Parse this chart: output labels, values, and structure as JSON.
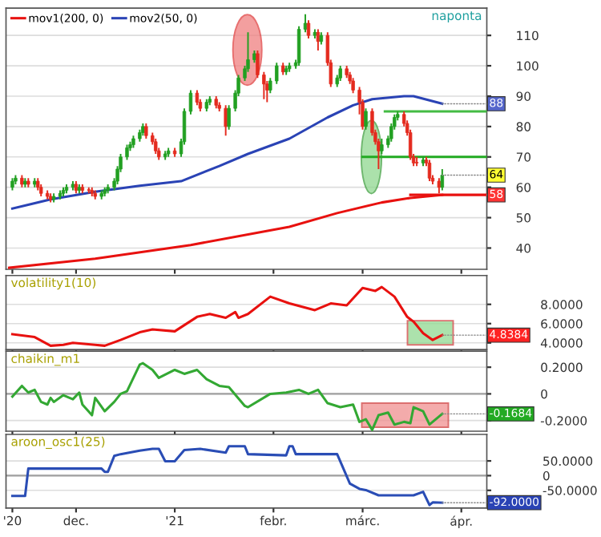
{
  "chart_data": [
    {
      "type": "candlestick",
      "x": [
        "2020-11-11",
        "2020-11-12",
        "2020-11-14",
        "2020-11-15",
        "2020-11-16",
        "2020-11-18",
        "2020-11-19",
        "2020-11-20",
        "2020-11-22",
        "2020-11-23",
        "2020-11-24",
        "2020-11-26",
        "2020-11-27",
        "2020-11-28",
        "2020-11-30",
        "2020-12-01",
        "2020-12-02",
        "2020-12-03",
        "2020-12-05",
        "2020-12-06",
        "2020-12-07",
        "2020-12-09",
        "2020-12-10",
        "2020-12-11",
        "2020-12-13",
        "2020-12-14",
        "2020-12-15",
        "2020-12-17",
        "2020-12-18",
        "2020-12-19",
        "2020-12-21",
        "2020-12-22",
        "2020-12-23",
        "2020-12-25",
        "2020-12-26",
        "2020-12-27",
        "2020-12-29",
        "2020-12-30",
        "2021-01-01",
        "2021-01-03",
        "2021-01-04",
        "2021-01-06",
        "2021-01-08",
        "2021-01-09",
        "2021-01-11",
        "2021-01-12",
        "2021-01-14",
        "2021-01-15",
        "2021-01-17",
        "2021-01-18",
        "2021-01-20",
        "2021-01-21",
        "2021-01-23",
        "2021-01-24",
        "2021-01-26",
        "2021-01-27",
        "2021-01-29",
        "2021-01-30",
        "2021-01-31",
        "2021-02-02",
        "2021-02-04",
        "2021-02-05",
        "2021-02-06",
        "2021-02-08",
        "2021-02-09",
        "2021-02-11",
        "2021-02-12",
        "2021-02-14",
        "2021-02-15",
        "2021-02-16",
        "2021-02-18",
        "2021-02-19",
        "2021-02-21",
        "2021-02-22",
        "2021-02-24",
        "2021-02-25",
        "2021-02-26",
        "2021-02-28",
        "2021-03-01",
        "2021-03-02",
        "2021-03-04",
        "2021-03-05",
        "2021-03-06",
        "2021-03-07",
        "2021-03-09",
        "2021-03-10",
        "2021-03-11",
        "2021-03-12",
        "2021-03-14",
        "2021-03-15",
        "2021-03-16",
        "2021-03-17",
        "2021-03-18",
        "2021-03-20",
        "2021-03-21",
        "2021-03-22",
        "2021-03-23",
        "2021-03-25",
        "2021-03-26"
      ],
      "ohlc": [
        [
          60,
          63,
          59,
          62
        ],
        [
          62,
          64,
          61,
          63
        ],
        [
          63,
          64,
          60,
          61
        ],
        [
          61,
          63,
          60,
          62
        ],
        [
          62,
          63,
          60,
          61
        ],
        [
          61,
          63,
          60,
          62
        ],
        [
          62,
          63,
          59,
          60
        ],
        [
          60,
          61,
          57,
          58
        ],
        [
          58,
          59,
          56,
          57
        ],
        [
          57,
          58,
          55,
          56
        ],
        [
          56,
          58,
          55,
          57
        ],
        [
          57,
          59,
          56,
          58
        ],
        [
          58,
          60,
          57,
          59
        ],
        [
          59,
          61,
          58,
          60
        ],
        [
          60,
          62,
          59,
          61
        ],
        [
          61,
          62,
          58,
          59
        ],
        [
          59,
          61,
          58,
          60
        ],
        [
          60,
          61,
          58,
          59
        ],
        [
          59,
          60,
          58,
          59
        ],
        [
          59,
          60,
          57,
          58
        ],
        [
          58,
          59,
          56,
          57
        ],
        [
          57,
          59,
          56,
          58
        ],
        [
          58,
          60,
          57,
          59
        ],
        [
          59,
          61,
          58,
          60
        ],
        [
          60,
          63,
          59,
          62
        ],
        [
          62,
          67,
          61,
          66
        ],
        [
          66,
          71,
          65,
          70
        ],
        [
          70,
          74,
          69,
          73
        ],
        [
          73,
          75,
          72,
          74
        ],
        [
          74,
          77,
          73,
          76
        ],
        [
          76,
          79,
          75,
          78
        ],
        [
          78,
          81,
          77,
          80
        ],
        [
          80,
          81,
          76,
          77
        ],
        [
          77,
          78,
          74,
          75
        ],
        [
          75,
          76,
          71,
          72
        ],
        [
          72,
          73,
          69,
          70
        ],
        [
          70,
          72,
          69,
          71
        ],
        [
          71,
          73,
          70,
          72
        ],
        [
          72,
          73,
          70,
          71
        ],
        [
          71,
          76,
          70,
          75
        ],
        [
          75,
          86,
          74,
          85
        ],
        [
          85,
          92,
          84,
          91
        ],
        [
          91,
          92,
          87,
          88
        ],
        [
          88,
          89,
          85,
          86
        ],
        [
          86,
          89,
          85,
          88
        ],
        [
          88,
          90,
          87,
          89
        ],
        [
          89,
          90,
          86,
          87
        ],
        [
          87,
          88,
          85,
          86
        ],
        [
          86,
          87,
          77,
          80
        ],
        [
          80,
          87,
          79,
          86
        ],
        [
          86,
          92,
          85,
          91
        ],
        [
          91,
          97,
          90,
          96
        ],
        [
          96,
          100,
          95,
          99
        ],
        [
          99,
          111,
          98,
          102
        ],
        [
          102,
          105,
          101,
          104
        ],
        [
          104,
          105,
          96,
          97
        ],
        [
          97,
          98,
          89,
          94
        ],
        [
          94,
          95,
          88,
          92
        ],
        [
          92,
          96,
          91,
          95
        ],
        [
          95,
          101,
          94,
          100
        ],
        [
          100,
          101,
          97,
          98
        ],
        [
          98,
          100,
          97,
          99
        ],
        [
          99,
          101,
          98,
          100
        ],
        [
          100,
          102,
          99,
          101
        ],
        [
          101,
          113,
          100,
          112
        ],
        [
          112,
          117,
          111,
          114
        ],
        [
          114,
          115,
          109,
          110
        ],
        [
          110,
          112,
          109,
          111
        ],
        [
          111,
          112,
          105,
          108
        ],
        [
          108,
          111,
          107,
          110
        ],
        [
          110,
          111,
          100,
          101
        ],
        [
          101,
          102,
          93,
          94
        ],
        [
          94,
          97,
          93,
          96
        ],
        [
          96,
          100,
          95,
          99
        ],
        [
          99,
          100,
          96,
          97
        ],
        [
          97,
          98,
          94,
          95
        ],
        [
          95,
          96,
          91,
          92
        ],
        [
          92,
          93,
          84,
          88
        ],
        [
          88,
          89,
          79,
          80
        ],
        [
          80,
          86,
          79,
          85
        ],
        [
          85,
          86,
          77,
          78
        ],
        [
          78,
          79,
          74,
          75
        ],
        [
          75,
          76,
          66,
          72
        ],
        [
          72,
          76,
          71,
          74
        ],
        [
          74,
          77,
          73,
          76
        ],
        [
          76,
          81,
          75,
          80
        ],
        [
          80,
          84,
          79,
          83
        ],
        [
          83,
          85,
          82,
          84
        ],
        [
          84,
          85,
          80,
          81
        ],
        [
          81,
          82,
          77,
          78
        ],
        [
          78,
          79,
          69,
          70
        ],
        [
          70,
          71,
          67,
          68
        ],
        [
          68,
          70,
          67,
          68
        ],
        [
          68,
          70,
          67,
          69
        ],
        [
          69,
          70,
          67,
          68
        ],
        [
          68,
          69,
          62,
          63
        ],
        [
          63,
          64,
          61,
          62
        ],
        [
          62,
          63,
          58,
          60
        ],
        [
          60,
          66,
          59,
          64
        ]
      ],
      "colors": [
        "#22a022",
        "#22a022",
        "#e42b1f",
        "#22a022",
        "#e42b1f",
        "#22a022",
        "#e42b1f",
        "#e42b1f",
        "#e42b1f",
        "#e42b1f",
        "#22a022",
        "#22a022",
        "#22a022",
        "#22a022",
        "#22a022",
        "#e42b1f",
        "#22a022",
        "#e42b1f",
        "#e42b1f",
        "#e42b1f",
        "#e42b1f",
        "#22a022",
        "#22a022",
        "#22a022",
        "#22a022",
        "#22a022",
        "#22a022",
        "#22a022",
        "#22a022",
        "#22a022",
        "#22a022",
        "#22a022",
        "#e42b1f",
        "#e42b1f",
        "#e42b1f",
        "#e42b1f",
        "#22a022",
        "#22a022",
        "#e42b1f",
        "#22a022",
        "#22a022",
        "#22a022",
        "#e42b1f",
        "#e42b1f",
        "#22a022",
        "#22a022",
        "#e42b1f",
        "#e42b1f",
        "#e42b1f",
        "#22a022",
        "#22a022",
        "#22a022",
        "#22a022",
        "#22a022",
        "#22a022",
        "#e42b1f",
        "#e42b1f",
        "#e42b1f",
        "#22a022",
        "#22a022",
        "#e42b1f",
        "#22a022",
        "#22a022",
        "#22a022",
        "#22a022",
        "#22a022",
        "#e42b1f",
        "#22a022",
        "#e42b1f",
        "#22a022",
        "#e42b1f",
        "#e42b1f",
        "#22a022",
        "#22a022",
        "#e42b1f",
        "#e42b1f",
        "#e42b1f",
        "#e42b1f",
        "#e42b1f",
        "#22a022",
        "#e42b1f",
        "#e42b1f",
        "#e42b1f",
        "#22a022",
        "#22a022",
        "#22a022",
        "#22a022",
        "#22a022",
        "#e42b1f",
        "#e42b1f",
        "#e42b1f",
        "#e42b1f",
        "#e42b1f",
        "#22a022",
        "#e42b1f",
        "#e42b1f",
        "#e42b1f",
        "#e42b1f",
        "#22a022"
      ],
      "series": [
        {
          "type": "line",
          "name": "mov1(200, 0)",
          "color": "#e8110f",
          "x": [
            "2020-11-10",
            "2020-12-07",
            "2021-01-06",
            "2021-02-06",
            "2021-02-21",
            "2021-03-07",
            "2021-03-16",
            "2021-03-26"
          ],
          "values": [
            33.5,
            36.5,
            41,
            47,
            51.5,
            55,
            56.5,
            57.5
          ]
        },
        {
          "type": "line",
          "name": "mov2(50, 0)",
          "color": "#2a43b5",
          "x": [
            "2020-11-11",
            "2020-11-23",
            "2020-12-07",
            "2020-12-21",
            "2021-01-03",
            "2021-01-15",
            "2021-01-24",
            "2021-02-06",
            "2021-02-18",
            "2021-02-26",
            "2021-03-04",
            "2021-03-14",
            "2021-03-17",
            "2021-03-26"
          ],
          "values": [
            53,
            56,
            58.5,
            60.5,
            62,
            67,
            71,
            76,
            83,
            87,
            89,
            90,
            90,
            87.5
          ]
        },
        {
          "type": "line",
          "color": "#e8110f",
          "x": [
            "2021-03-16",
            "2021-04-09"
          ],
          "values": [
            57.5,
            57.5
          ]
        },
        {
          "type": "line",
          "color": "#44bb44",
          "x": [
            "2021-03-08",
            "2021-04-09"
          ],
          "values": [
            85,
            85
          ]
        },
        {
          "type": "line",
          "color": "#22aa22",
          "x": [
            "2021-03-01",
            "2021-04-09"
          ],
          "values": [
            70,
            70
          ]
        }
      ],
      "xlim": [
        "2020-11-09",
        "2021-04-09"
      ],
      "ylim": [
        33,
        119
      ],
      "xticks": [
        {
          "value": "2020-11-11",
          "label": null
        },
        {
          "value": "2020-12-01",
          "label": null
        },
        {
          "value": "2021-01-01",
          "label": null
        },
        {
          "value": "2021-02-01",
          "label": null
        },
        {
          "value": "2021-03-01",
          "label": null
        },
        {
          "value": "2021-04-01",
          "label": null
        }
      ],
      "yticks": [
        40,
        50,
        60,
        70,
        80,
        90,
        100,
        110
      ],
      "tick_labels": "y",
      "grid": "y",
      "legend": "top left",
      "annotations": [
        "naponta",
        {
          "text": "88",
          "x": "2021-03-26",
          "y": 87.5
        },
        {
          "text": "64",
          "x": "2021-03-26",
          "y": 64
        },
        {
          "text": "58",
          "x": "2021-04-09",
          "y": 57.5
        }
      ]
    },
    {
      "type": "line",
      "title": "volatility1(10)",
      "series": [
        {
          "color": "#e8110f",
          "x": [
            "2020-11-11",
            "2020-11-18",
            "2020-11-23",
            "2020-11-27",
            "2020-11-30",
            "2020-12-07",
            "2020-12-10",
            "2020-12-15",
            "2020-12-21",
            "2020-12-25",
            "2021-01-01",
            "2021-01-08",
            "2021-01-12",
            "2021-01-17",
            "2021-01-20",
            "2021-01-21",
            "2021-01-24",
            "2021-01-31",
            "2021-02-06",
            "2021-02-14",
            "2021-02-19",
            "2021-02-24",
            "2021-03-01",
            "2021-03-05",
            "2021-03-07",
            "2021-03-11",
            "2021-03-15",
            "2021-03-17",
            "2021-03-20",
            "2021-03-23",
            "2021-03-26"
          ],
          "values": [
            4.9,
            4.6,
            3.7,
            3.8,
            4.0,
            3.8,
            3.7,
            4.3,
            5.1,
            5.4,
            5.2,
            6.7,
            7.0,
            6.6,
            7.2,
            6.6,
            7.0,
            8.8,
            8.1,
            7.4,
            8.1,
            7.9,
            9.7,
            9.4,
            9.8,
            8.8,
            6.7,
            6.2,
            5.0,
            4.3,
            4.8
          ]
        }
      ],
      "xlim": [
        "2020-11-09",
        "2021-04-09"
      ],
      "ylim": [
        3.3,
        11
      ],
      "xticks": [
        {
          "value": "2020-11-11",
          "label": null
        },
        {
          "value": "2020-12-01",
          "label": null
        },
        {
          "value": "2021-01-01",
          "label": null
        },
        {
          "value": "2021-02-01",
          "label": null
        },
        {
          "value": "2021-03-01",
          "label": null
        },
        {
          "value": "2021-04-01",
          "label": null
        }
      ],
      "yticks": [
        {
          "value": 4,
          "label": "4.0000"
        },
        {
          "value": 6,
          "label": "6.0000"
        },
        {
          "value": 8,
          "label": "8.0000"
        }
      ],
      "tick_labels": "y",
      "grid": "y",
      "annotations": [
        {
          "text": "4.8384",
          "x": "2021-03-26",
          "y": 4.8
        }
      ]
    },
    {
      "type": "line",
      "title": "chaikin_m1",
      "series": [
        {
          "color": "#33a833",
          "x": [
            "2020-11-11",
            "2020-11-14",
            "2020-11-16",
            "2020-11-18",
            "2020-11-20",
            "2020-11-22",
            "2020-11-23",
            "2020-11-24",
            "2020-11-27",
            "2020-11-30",
            "2020-12-02",
            "2020-12-03",
            "2020-12-06",
            "2020-12-07",
            "2020-12-10",
            "2020-12-13",
            "2020-12-15",
            "2020-12-17",
            "2020-12-21",
            "2020-12-22",
            "2020-12-25",
            "2020-12-27",
            "2021-01-01",
            "2021-01-04",
            "2021-01-08",
            "2021-01-11",
            "2021-01-15",
            "2021-01-18",
            "2021-01-23",
            "2021-01-24",
            "2021-01-31",
            "2021-02-05",
            "2021-02-09",
            "2021-02-12",
            "2021-02-15",
            "2021-02-18",
            "2021-02-22",
            "2021-02-26",
            "2021-02-28",
            "2021-03-02",
            "2021-03-04",
            "2021-03-06",
            "2021-03-09",
            "2021-03-11",
            "2021-03-14",
            "2021-03-16",
            "2021-03-17",
            "2021-03-20",
            "2021-03-22",
            "2021-03-26"
          ],
          "values": [
            -0.02,
            0.06,
            0.01,
            0.03,
            -0.06,
            -0.08,
            -0.03,
            -0.06,
            -0.01,
            -0.04,
            0.01,
            -0.08,
            -0.16,
            -0.03,
            -0.13,
            -0.06,
            0.0,
            0.02,
            0.22,
            0.23,
            0.18,
            0.12,
            0.18,
            0.15,
            0.18,
            0.11,
            0.06,
            0.05,
            -0.09,
            -0.1,
            0.0,
            0.01,
            0.03,
            0.0,
            0.03,
            -0.07,
            -0.1,
            -0.08,
            -0.21,
            -0.19,
            -0.27,
            -0.16,
            -0.14,
            -0.23,
            -0.21,
            -0.22,
            -0.1,
            -0.13,
            -0.23,
            -0.15
          ]
        }
      ],
      "xlim": [
        "2020-11-09",
        "2021-04-09"
      ],
      "ylim": [
        -0.28,
        0.32
      ],
      "xticks": [
        {
          "value": "2020-11-11",
          "label": null
        },
        {
          "value": "2020-12-01",
          "label": null
        },
        {
          "value": "2021-01-01",
          "label": null
        },
        {
          "value": "2021-02-01",
          "label": null
        },
        {
          "value": "2021-03-01",
          "label": null
        },
        {
          "value": "2021-04-01",
          "label": null
        }
      ],
      "yticks": [
        {
          "value": -0.2,
          "label": "-0.2000"
        },
        {
          "value": 0,
          "label": "0"
        },
        {
          "value": 0.2,
          "label": "0.2000"
        }
      ],
      "tick_labels": "y",
      "grid": "y",
      "ref_lines": [
        {
          "axis": "y",
          "value": 0,
          "color": "#a0a0a0"
        }
      ],
      "annotations": [
        {
          "text": "-0.1684",
          "x": "2021-03-26",
          "y": -0.15
        }
      ]
    },
    {
      "type": "line",
      "title": "aroon_osc1(25)",
      "series": [
        {
          "color": "#2a4db5",
          "x": [
            "2020-11-11",
            "2020-11-15",
            "2020-11-16",
            "2020-12-09",
            "2020-12-10",
            "2020-12-11",
            "2020-12-13",
            "2020-12-15",
            "2020-12-21",
            "2020-12-25",
            "2020-12-27",
            "2020-12-29",
            "2021-01-01",
            "2021-01-04",
            "2021-01-09",
            "2021-01-17",
            "2021-01-18",
            "2021-01-23",
            "2021-01-24",
            "2021-02-05",
            "2021-02-06",
            "2021-02-07",
            "2021-02-08",
            "2021-02-21",
            "2021-02-25",
            "2021-02-28",
            "2021-03-02",
            "2021-03-06",
            "2021-03-17",
            "2021-03-20",
            "2021-03-22",
            "2021-03-23",
            "2021-03-26"
          ],
          "values": [
            -69,
            -69,
            24,
            24,
            13,
            13,
            67,
            73,
            85,
            91,
            91,
            49,
            49,
            87,
            91,
            78,
            100,
            100,
            73,
            69,
            100,
            100,
            73,
            73,
            -27,
            -45,
            -49,
            -67,
            -67,
            -55,
            -100,
            -91,
            -92
          ]
        }
      ],
      "xlim": [
        "2020-11-09",
        "2021-04-09"
      ],
      "ylim": [
        -110,
        140
      ],
      "xticks": [
        {
          "value": "2020-11-11",
          "label": "'20"
        },
        {
          "value": "2020-12-01",
          "label": "dec."
        },
        {
          "value": "2021-01-01",
          "label": "'21"
        },
        {
          "value": "2021-02-01",
          "label": "febr."
        },
        {
          "value": "2021-03-01",
          "label": "márc."
        },
        {
          "value": "2021-04-01",
          "label": "ápr."
        }
      ],
      "yticks": [
        {
          "value": -50,
          "label": "-50.0000"
        },
        {
          "value": 0,
          "label": "0"
        },
        {
          "value": 50,
          "label": "50.0000"
        }
      ],
      "grid": "y",
      "ref_lines": [
        {
          "axis": "y",
          "value": 0,
          "color": "#a0a0a0"
        }
      ],
      "annotations": [
        {
          "text": "-92.0000",
          "x": "2021-03-26",
          "y": -92
        }
      ]
    }
  ]
}
